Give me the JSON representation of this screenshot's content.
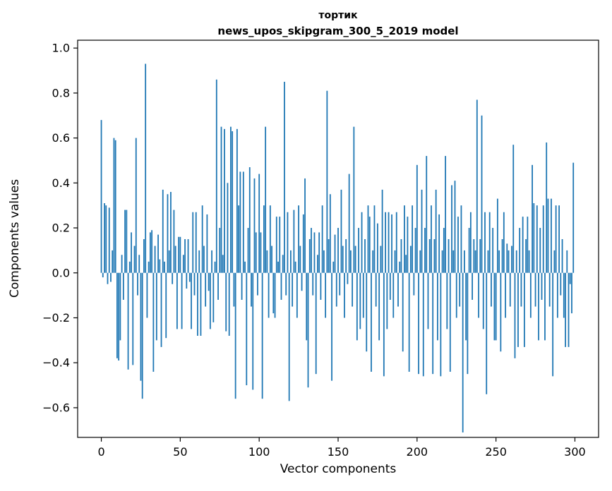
{
  "figure": {
    "suptitle": "тортик",
    "title": "news_upos_skipgram_300_5_2019 model"
  },
  "chart_data": {
    "type": "bar",
    "suptitle": "тортик",
    "title": "news_upos_skipgram_300_5_2019 model",
    "xlabel": "Vector components",
    "ylabel": "Components values",
    "bar_color": "#1f77b4",
    "n_components": 300,
    "xlim": [
      -15,
      315
    ],
    "ylim": [
      -0.732,
      1.035
    ],
    "x_ticks": [
      0,
      50,
      100,
      150,
      200,
      250,
      300
    ],
    "y_ticks": [
      -0.6,
      -0.4,
      -0.2,
      0.0,
      0.2,
      0.4,
      0.6,
      0.8,
      1.0
    ],
    "y_tick_labels": [
      "−0.6",
      "−0.4",
      "−0.2",
      "0.0",
      "0.2",
      "0.4",
      "0.6",
      "0.8",
      "1.0"
    ],
    "grid": false,
    "legend": false,
    "values": [
      0.68,
      -0.02,
      0.31,
      0.3,
      -0.05,
      0.29,
      -0.04,
      0.1,
      0.6,
      0.59,
      -0.38,
      -0.39,
      -0.3,
      0.08,
      -0.12,
      0.28,
      0.28,
      -0.43,
      0.05,
      0.18,
      -0.41,
      0.12,
      0.6,
      -0.1,
      0.08,
      -0.48,
      -0.56,
      0.15,
      0.93,
      -0.2,
      0.05,
      0.18,
      0.19,
      -0.44,
      0.12,
      -0.3,
      0.17,
      0.06,
      -0.33,
      0.37,
      0.05,
      -0.29,
      0.35,
      0.1,
      0.36,
      -0.05,
      0.28,
      0.12,
      -0.25,
      0.16,
      0.16,
      -0.25,
      0.08,
      0.15,
      -0.07,
      0.15,
      -0.04,
      -0.25,
      0.27,
      -0.1,
      0.27,
      -0.28,
      0.1,
      -0.28,
      0.3,
      0.12,
      -0.15,
      0.26,
      -0.08,
      -0.25,
      0.1,
      -0.22,
      0.05,
      0.86,
      -0.12,
      0.2,
      0.65,
      0.08,
      0.64,
      -0.26,
      0.4,
      -0.28,
      0.65,
      0.63,
      -0.15,
      -0.56,
      0.64,
      0.3,
      0.45,
      -0.12,
      0.45,
      0.05,
      -0.5,
      0.2,
      0.47,
      -0.15,
      -0.52,
      0.42,
      0.18,
      -0.1,
      0.44,
      0.18,
      -0.56,
      0.3,
      0.65,
      0.1,
      -0.2,
      0.3,
      0.12,
      -0.18,
      -0.2,
      0.25,
      0.05,
      0.25,
      -0.12,
      0.08,
      0.85,
      -0.1,
      0.27,
      -0.57,
      0.1,
      -0.15,
      0.28,
      0.05,
      -0.2,
      0.3,
      0.12,
      -0.08,
      0.26,
      0.42,
      -0.3,
      -0.51,
      0.15,
      0.2,
      -0.1,
      0.18,
      -0.45,
      0.08,
      0.18,
      -0.12,
      0.3,
      0.1,
      -0.2,
      0.81,
      0.15,
      0.35,
      -0.48,
      0.05,
      0.17,
      -0.15,
      0.2,
      -0.1,
      0.37,
      0.12,
      -0.2,
      0.15,
      -0.05,
      0.44,
      0.1,
      -0.15,
      0.65,
      0.12,
      -0.3,
      0.2,
      -0.25,
      0.27,
      -0.2,
      0.15,
      -0.35,
      0.3,
      0.25,
      -0.44,
      0.1,
      0.3,
      -0.15,
      0.22,
      -0.3,
      0.12,
      0.37,
      -0.46,
      0.27,
      -0.25,
      0.27,
      -0.12,
      0.26,
      -0.2,
      0.1,
      0.27,
      -0.15,
      0.05,
      0.15,
      -0.35,
      0.3,
      0.08,
      0.25,
      -0.44,
      0.12,
      0.3,
      -0.1,
      0.2,
      0.48,
      -0.45,
      0.1,
      0.37,
      -0.46,
      0.2,
      0.52,
      -0.25,
      0.15,
      0.3,
      -0.45,
      0.15,
      0.37,
      -0.3,
      0.26,
      -0.46,
      0.1,
      0.2,
      0.52,
      -0.25,
      0.15,
      -0.44,
      0.39,
      0.1,
      0.41,
      -0.2,
      0.25,
      -0.15,
      0.3,
      -0.71,
      0.1,
      -0.3,
      -0.45,
      0.2,
      0.27,
      -0.12,
      0.15,
      0.1,
      0.77,
      -0.2,
      0.15,
      0.7,
      -0.25,
      0.27,
      -0.54,
      0.1,
      0.27,
      -0.15,
      0.2,
      -0.3,
      -0.3,
      0.33,
      0.1,
      -0.35,
      0.15,
      0.27,
      -0.2,
      0.13,
      0.1,
      -0.15,
      0.12,
      0.57,
      -0.38,
      0.1,
      -0.33,
      0.2,
      -0.15,
      0.25,
      -0.33,
      0.15,
      0.25,
      0.1,
      -0.2,
      0.48,
      0.31,
      -0.15,
      0.3,
      -0.3,
      0.2,
      -0.12,
      0.3,
      -0.3,
      0.58,
      0.33,
      -0.15,
      0.33,
      -0.46,
      0.1,
      0.3,
      -0.2,
      0.3,
      -0.1,
      0.15,
      -0.2,
      -0.33,
      0.1,
      -0.33,
      -0.05,
      -0.18,
      0.49
    ]
  }
}
